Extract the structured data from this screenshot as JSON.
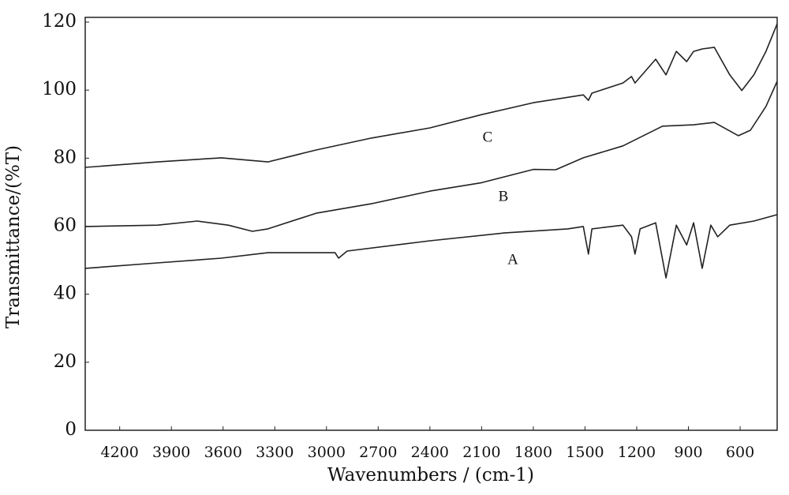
{
  "chart_data": {
    "type": "line",
    "xlabel": "Wavenumbers / (cm-1)",
    "ylabel": "Transmittance/(%T)",
    "xlim": [
      4400,
      385
    ],
    "ylim": [
      0,
      120
    ],
    "xticks": [
      4200,
      3900,
      3600,
      3300,
      3000,
      2700,
      2400,
      2100,
      1800,
      1500,
      1200,
      900,
      600
    ],
    "yticks": [
      0,
      20,
      40,
      60,
      80,
      100,
      120
    ],
    "grid": false,
    "series": [
      {
        "name": "A",
        "color": "#222222",
        "x": [
          4400,
          3980,
          3610,
          3340,
          2950,
          2930,
          2880,
          2400,
          1970,
          1600,
          1510,
          1480,
          1460,
          1280,
          1230,
          1210,
          1180,
          1090,
          1030,
          970,
          910,
          870,
          820,
          770,
          730,
          660,
          520,
          385
        ],
        "values": [
          47.6,
          49.2,
          50.6,
          52.2,
          52.2,
          50.6,
          52.7,
          55.7,
          58.0,
          59.2,
          59.9,
          51.8,
          59.2,
          60.3,
          56.9,
          51.8,
          59.2,
          61.0,
          44.8,
          60.3,
          54.5,
          61.0,
          47.6,
          60.3,
          56.9,
          60.3,
          61.5,
          63.4
        ]
      },
      {
        "name": "B",
        "color": "#222222",
        "x": [
          4400,
          3980,
          3750,
          3570,
          3430,
          3340,
          3060,
          2740,
          2400,
          2100,
          1800,
          1670,
          1510,
          1280,
          1050,
          870,
          750,
          610,
          540,
          450,
          385
        ],
        "values": [
          59.9,
          60.3,
          61.5,
          60.3,
          58.5,
          59.2,
          63.8,
          66.6,
          70.3,
          72.8,
          76.7,
          76.6,
          80.1,
          83.6,
          89.4,
          89.8,
          90.5,
          86.6,
          88.2,
          95.2,
          102.6
        ]
      },
      {
        "name": "C",
        "color": "#222222",
        "x": [
          4400,
          3980,
          3610,
          3340,
          3060,
          2740,
          2400,
          2100,
          1800,
          1510,
          1480,
          1460,
          1280,
          1230,
          1210,
          1090,
          1030,
          970,
          910,
          870,
          820,
          750,
          660,
          590,
          520,
          450,
          385
        ],
        "values": [
          77.3,
          78.9,
          80.1,
          78.9,
          82.4,
          85.9,
          88.9,
          92.8,
          96.3,
          98.6,
          97.0,
          99.1,
          102.1,
          104.0,
          102.1,
          109.1,
          104.5,
          111.4,
          108.4,
          111.4,
          112.1,
          112.6,
          104.5,
          99.9,
          104.5,
          111.4,
          119.5
        ]
      }
    ]
  }
}
